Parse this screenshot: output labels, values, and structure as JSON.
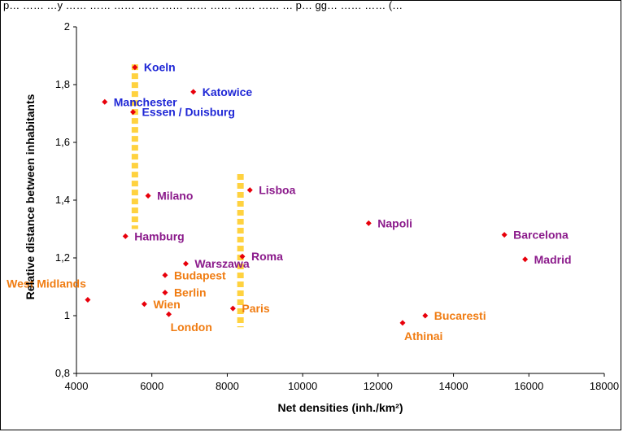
{
  "top_text": "p… …… …y …… …… …… …… …… …… …… …… …… … p… gg… …… …… (…",
  "chart_data": {
    "type": "scatter",
    "title": "",
    "xlabel": "Net densities (inh./km²)",
    "ylabel": "Relative distance between inhabitants",
    "xlim": [
      4000,
      18000
    ],
    "ylim": [
      0.8,
      2
    ],
    "x_ticks": [
      4000,
      6000,
      8000,
      10000,
      12000,
      14000,
      16000,
      18000
    ],
    "y_ticks": [
      0.8,
      1,
      1.2,
      1.4,
      1.6,
      1.8,
      2
    ],
    "y_tick_labels": [
      "0,8",
      "1",
      "1,2",
      "1,4",
      "1,6",
      "1,8",
      "2"
    ],
    "grid": false,
    "legend": "none",
    "marker_color": "#e8000b",
    "group_colors": {
      "blue": "#1f27d6",
      "purple": "#8b1a8b",
      "orange": "#f07c12"
    },
    "highlight_color": "#ffd23f",
    "highlight_bars": [
      {
        "x": 5550,
        "y_from": 1.3,
        "y_to": 1.87
      },
      {
        "x": 8350,
        "y_from": 0.96,
        "y_to": 1.49
      }
    ],
    "points": [
      {
        "name": "Koeln",
        "x": 5550,
        "y": 1.86,
        "group": "blue",
        "anchor": "right"
      },
      {
        "name": "Manchester",
        "x": 4750,
        "y": 1.74,
        "group": "blue",
        "anchor": "right"
      },
      {
        "name": "Katowice",
        "x": 7100,
        "y": 1.775,
        "group": "blue",
        "anchor": "right"
      },
      {
        "name": "Essen / Duisburg",
        "x": 5500,
        "y": 1.705,
        "group": "blue",
        "anchor": "right"
      },
      {
        "name": "Milano",
        "x": 5900,
        "y": 1.415,
        "group": "purple",
        "anchor": "right"
      },
      {
        "name": "Lisboa",
        "x": 8600,
        "y": 1.435,
        "group": "purple",
        "anchor": "right"
      },
      {
        "name": "Napoli",
        "x": 11750,
        "y": 1.32,
        "group": "purple",
        "anchor": "right"
      },
      {
        "name": "Barcelona",
        "x": 15350,
        "y": 1.28,
        "group": "purple",
        "anchor": "right"
      },
      {
        "name": "Hamburg",
        "x": 5300,
        "y": 1.275,
        "group": "purple",
        "anchor": "right"
      },
      {
        "name": "Roma",
        "x": 8400,
        "y": 1.205,
        "group": "purple",
        "anchor": "right"
      },
      {
        "name": "Madrid",
        "x": 15900,
        "y": 1.195,
        "group": "purple",
        "anchor": "right"
      },
      {
        "name": "Warszawa",
        "x": 6900,
        "y": 1.18,
        "group": "purple",
        "anchor": "right"
      },
      {
        "name": "Budapest",
        "x": 6350,
        "y": 1.14,
        "group": "orange",
        "anchor": "right"
      },
      {
        "name": "West Midlands",
        "x": 4300,
        "y": 1.055,
        "group": "orange",
        "anchor": "above-left"
      },
      {
        "name": "Berlin",
        "x": 6350,
        "y": 1.08,
        "group": "orange",
        "anchor": "right"
      },
      {
        "name": "Wien",
        "x": 5800,
        "y": 1.04,
        "group": "orange",
        "anchor": "right"
      },
      {
        "name": "London",
        "x": 6450,
        "y": 1.005,
        "group": "orange",
        "anchor": "below"
      },
      {
        "name": "Paris",
        "x": 8150,
        "y": 1.025,
        "group": "orange",
        "anchor": "right"
      },
      {
        "name": "Bucaresti",
        "x": 13250,
        "y": 1.0,
        "group": "orange",
        "anchor": "right"
      },
      {
        "name": "Athinai",
        "x": 12650,
        "y": 0.975,
        "group": "orange",
        "anchor": "below"
      }
    ]
  }
}
